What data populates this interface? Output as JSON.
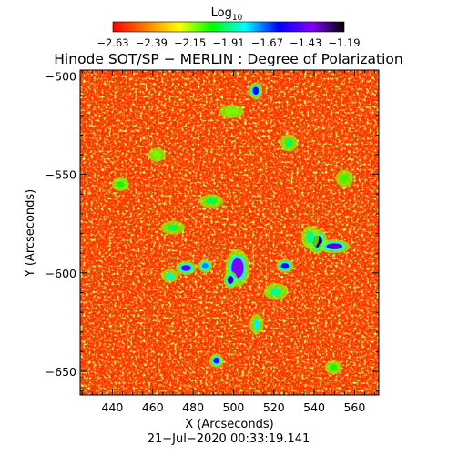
{
  "chart_data": {
    "type": "heatmap",
    "title": "Hinode SOT/SP − MERLIN : Degree of Polarization",
    "xlabel": "X (Arcseconds)",
    "ylabel": "Y (Arcseconds)",
    "footer": "21−Jul−2020  00:33:19.141",
    "xlim": [
      424,
      572
    ],
    "ylim": [
      -662,
      -497
    ],
    "xticks": [
      440,
      460,
      480,
      500,
      520,
      540,
      560
    ],
    "yticks": [
      -500,
      -550,
      -600,
      -650
    ],
    "xtick_labels": [
      "440",
      "460",
      "480",
      "500",
      "520",
      "540",
      "560"
    ],
    "ytick_labels": [
      "−500",
      "−550",
      "−600",
      "−650"
    ],
    "colorbar": {
      "label_base": "Log",
      "label_sub": "10",
      "range": [
        -2.63,
        -1.19
      ],
      "ticks": [
        -2.63,
        -2.39,
        -2.15,
        -1.91,
        -1.67,
        -1.43,
        -1.19
      ],
      "tick_labels": [
        "−2.63",
        "−2.39",
        "−2.15",
        "−1.91",
        "−1.67",
        "−1.43",
        "−1.19"
      ],
      "colors": [
        "#ff0000",
        "#ff7f00",
        "#ffff00",
        "#00ff00",
        "#00ffff",
        "#0000ff",
        "#8000ff",
        "#000000"
      ]
    },
    "patches": [
      {
        "x": 541.5,
        "y": -584.0,
        "rx": 2.5,
        "ry": 3,
        "v": -1.25
      },
      {
        "x": 550.0,
        "y": -586.5,
        "rx": 4,
        "ry": 1.5,
        "v": -1.35
      },
      {
        "x": 502.0,
        "y": -597.5,
        "rx": 3,
        "ry": 5,
        "v": -1.4
      },
      {
        "x": 498.5,
        "y": -603.5,
        "rx": 1.5,
        "ry": 2,
        "v": -1.3
      },
      {
        "x": 476.5,
        "y": -597.5,
        "rx": 2.5,
        "ry": 1.5,
        "v": -1.45
      },
      {
        "x": 491.5,
        "y": -644.5,
        "rx": 1.5,
        "ry": 1.5,
        "v": -1.5
      },
      {
        "x": 525.5,
        "y": -596.5,
        "rx": 2,
        "ry": 1.5,
        "v": -1.55
      },
      {
        "x": 511.0,
        "y": -507.5,
        "rx": 1.5,
        "ry": 2,
        "v": -1.6
      },
      {
        "x": 486.0,
        "y": -596.5,
        "rx": 1.5,
        "ry": 1.5,
        "v": -1.7
      },
      {
        "x": 468.5,
        "y": -601.5,
        "rx": 2,
        "ry": 1.5,
        "v": -1.85
      },
      {
        "x": 511.5,
        "y": -626.0,
        "rx": 1.5,
        "ry": 2.5,
        "v": -1.8
      },
      {
        "x": 538.0,
        "y": -582.0,
        "rx": 2,
        "ry": 3,
        "v": -1.9
      },
      {
        "x": 470.0,
        "y": -577.0,
        "rx": 3,
        "ry": 1.5,
        "v": -1.95
      },
      {
        "x": 489.0,
        "y": -563.5,
        "rx": 3,
        "ry": 1.5,
        "v": -1.95
      },
      {
        "x": 527.5,
        "y": -534.0,
        "rx": 2,
        "ry": 2,
        "v": -1.95
      },
      {
        "x": 521.0,
        "y": -609.5,
        "rx": 3,
        "ry": 2,
        "v": -1.9
      },
      {
        "x": 444.0,
        "y": -555.0,
        "rx": 2,
        "ry": 1.5,
        "v": -2.0
      },
      {
        "x": 549.5,
        "y": -648.0,
        "rx": 2,
        "ry": 1.5,
        "v": -2.0
      },
      {
        "x": 555.0,
        "y": -552.0,
        "rx": 2,
        "ry": 2,
        "v": -2.05
      },
      {
        "x": 462.0,
        "y": -540.0,
        "rx": 2,
        "ry": 1.5,
        "v": -2.1
      },
      {
        "x": 499.0,
        "y": -518.0,
        "rx": 3,
        "ry": 1.5,
        "v": -2.1
      }
    ]
  }
}
